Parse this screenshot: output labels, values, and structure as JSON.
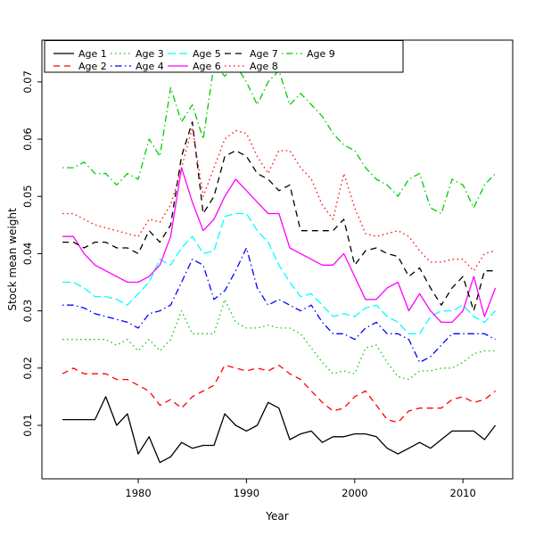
{
  "chart_data": {
    "type": "line",
    "title": "",
    "xlabel": "Year",
    "ylabel": "Stock mean weight",
    "x_ticks": [
      1980,
      1990,
      2000,
      2010
    ],
    "y_ticks": [
      0.01,
      0.02,
      0.03,
      0.04,
      0.05,
      0.06,
      0.07
    ],
    "xlim": [
      1971.1,
      2014.6
    ],
    "ylim": [
      0.00065,
      0.0773
    ],
    "grid": false,
    "legend_position": "top-left-horizontal",
    "legend_columns": 5,
    "x": [
      1973,
      1974,
      1975,
      1976,
      1977,
      1978,
      1979,
      1980,
      1981,
      1982,
      1983,
      1984,
      1985,
      1986,
      1987,
      1988,
      1989,
      1990,
      1991,
      1992,
      1993,
      1994,
      1995,
      1996,
      1997,
      1998,
      1999,
      2000,
      2001,
      2002,
      2003,
      2004,
      2005,
      2006,
      2007,
      2008,
      2009,
      2010,
      2011,
      2012,
      2013
    ],
    "series": [
      {
        "name": "Age 1",
        "color": "#000000",
        "linetype": "solid",
        "values": [
          0.011,
          0.011,
          0.011,
          0.011,
          0.015,
          0.01,
          0.012,
          0.005,
          0.008,
          0.0035,
          0.0045,
          0.007,
          0.006,
          0.0065,
          0.0065,
          0.012,
          0.01,
          0.009,
          0.01,
          0.014,
          0.013,
          0.0075,
          0.0085,
          0.009,
          0.007,
          0.008,
          0.008,
          0.0085,
          0.0085,
          0.008,
          0.006,
          0.005,
          0.006,
          0.007,
          0.006,
          0.0075,
          0.009,
          0.009,
          0.009,
          0.0075,
          0.01
        ]
      },
      {
        "name": "Age 2",
        "color": "#FF0000",
        "linetype": "dashed",
        "values": [
          0.019,
          0.02,
          0.019,
          0.019,
          0.019,
          0.018,
          0.018,
          0.017,
          0.016,
          0.0135,
          0.0145,
          0.013,
          0.015,
          0.016,
          0.017,
          0.0205,
          0.02,
          0.0195,
          0.02,
          0.0195,
          0.0205,
          0.019,
          0.018,
          0.016,
          0.014,
          0.0125,
          0.013,
          0.015,
          0.016,
          0.0135,
          0.011,
          0.0105,
          0.0125,
          0.013,
          0.013,
          0.013,
          0.0145,
          0.015,
          0.014,
          0.0145,
          0.016
        ]
      },
      {
        "name": "Age 3",
        "color": "#00CD00",
        "linetype": "dotted",
        "values": [
          0.025,
          0.025,
          0.025,
          0.025,
          0.025,
          0.024,
          0.025,
          0.023,
          0.025,
          0.023,
          0.025,
          0.03,
          0.026,
          0.026,
          0.026,
          0.032,
          0.028,
          0.027,
          0.027,
          0.0275,
          0.027,
          0.027,
          0.026,
          0.0235,
          0.021,
          0.019,
          0.0195,
          0.019,
          0.0235,
          0.024,
          0.021,
          0.0185,
          0.018,
          0.0195,
          0.0195,
          0.02,
          0.02,
          0.021,
          0.0225,
          0.023,
          0.023
        ]
      },
      {
        "name": "Age 4",
        "color": "#0000FF",
        "linetype": "dotdash",
        "values": [
          0.031,
          0.031,
          0.0305,
          0.0295,
          0.029,
          0.0285,
          0.028,
          0.027,
          0.0295,
          0.03,
          0.031,
          0.035,
          0.039,
          0.038,
          0.032,
          0.0335,
          0.037,
          0.041,
          0.034,
          0.031,
          0.032,
          0.031,
          0.03,
          0.031,
          0.028,
          0.026,
          0.026,
          0.025,
          0.027,
          0.028,
          0.026,
          0.026,
          0.025,
          0.021,
          0.022,
          0.024,
          0.026,
          0.026,
          0.026,
          0.026,
          0.025
        ]
      },
      {
        "name": "Age 5",
        "color": "#00FFFF",
        "linetype": "longdash",
        "values": [
          0.035,
          0.035,
          0.034,
          0.0325,
          0.0325,
          0.032,
          0.031,
          0.033,
          0.035,
          0.039,
          0.038,
          0.041,
          0.043,
          0.04,
          0.0405,
          0.0465,
          0.047,
          0.047,
          0.044,
          0.042,
          0.038,
          0.035,
          0.0325,
          0.033,
          0.031,
          0.029,
          0.0295,
          0.029,
          0.0305,
          0.031,
          0.029,
          0.028,
          0.026,
          0.026,
          0.029,
          0.03,
          0.03,
          0.031,
          0.029,
          0.028,
          0.03
        ]
      },
      {
        "name": "Age 6",
        "color": "#FF00FF",
        "linetype": "solid",
        "values": [
          0.043,
          0.043,
          0.04,
          0.038,
          0.037,
          0.036,
          0.035,
          0.035,
          0.036,
          0.038,
          0.043,
          0.055,
          0.049,
          0.044,
          0.046,
          0.05,
          0.053,
          0.051,
          0.049,
          0.047,
          0.047,
          0.041,
          0.04,
          0.039,
          0.038,
          0.038,
          0.04,
          0.036,
          0.032,
          0.032,
          0.034,
          0.035,
          0.03,
          0.033,
          0.03,
          0.028,
          0.028,
          0.03,
          0.036,
          0.029,
          0.034
        ]
      },
      {
        "name": "Age 7",
        "color": "#000000",
        "linetype": "dashed",
        "values": [
          0.042,
          0.042,
          0.041,
          0.042,
          0.042,
          0.041,
          0.041,
          0.04,
          0.044,
          0.042,
          0.045,
          0.057,
          0.063,
          0.047,
          0.05,
          0.057,
          0.058,
          0.057,
          0.054,
          0.053,
          0.051,
          0.052,
          0.044,
          0.044,
          0.044,
          0.044,
          0.046,
          0.038,
          0.0405,
          0.041,
          0.04,
          0.0395,
          0.036,
          0.0375,
          0.034,
          0.031,
          0.034,
          0.036,
          0.03,
          0.037,
          0.037
        ]
      },
      {
        "name": "Age 8",
        "color": "#FF0000",
        "linetype": "dotted",
        "values": [
          0.047,
          0.047,
          0.046,
          0.045,
          0.0445,
          0.044,
          0.0435,
          0.043,
          0.046,
          0.0455,
          0.0485,
          0.055,
          0.062,
          0.05,
          0.055,
          0.06,
          0.0615,
          0.061,
          0.057,
          0.054,
          0.058,
          0.058,
          0.055,
          0.053,
          0.0485,
          0.046,
          0.054,
          0.048,
          0.0435,
          0.043,
          0.0435,
          0.044,
          0.043,
          0.0405,
          0.0385,
          0.0385,
          0.039,
          0.039,
          0.037,
          0.04,
          0.0405
        ]
      },
      {
        "name": "Age 9",
        "color": "#00CD00",
        "linetype": "dotdash",
        "values": [
          0.055,
          0.055,
          0.056,
          0.054,
          0.054,
          0.052,
          0.054,
          0.053,
          0.06,
          0.057,
          0.069,
          0.063,
          0.066,
          0.06,
          0.073,
          0.071,
          0.073,
          0.07,
          0.066,
          0.07,
          0.072,
          0.066,
          0.068,
          0.066,
          0.064,
          0.061,
          0.059,
          0.058,
          0.055,
          0.053,
          0.052,
          0.05,
          0.053,
          0.054,
          0.048,
          0.047,
          0.053,
          0.052,
          0.048,
          0.052,
          0.054
        ]
      }
    ]
  }
}
